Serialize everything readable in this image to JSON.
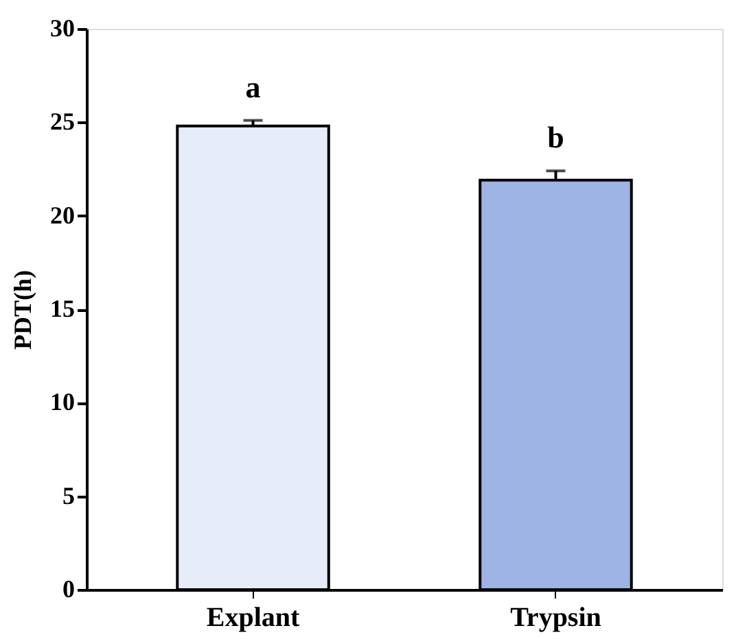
{
  "chart_data": {
    "type": "bar",
    "ylabel": "PDT(h)",
    "categories": [
      "Explant",
      "Trypsin"
    ],
    "values": [
      24.8,
      21.9
    ],
    "errors": [
      0.3,
      0.5
    ],
    "colors": [
      "#e6ecf8",
      "#9db4e4"
    ],
    "ylim": [
      0,
      30
    ],
    "yticks": [
      0,
      5,
      10,
      15,
      20,
      25,
      30
    ],
    "grid": false,
    "annotations": [
      "a",
      "b"
    ]
  }
}
